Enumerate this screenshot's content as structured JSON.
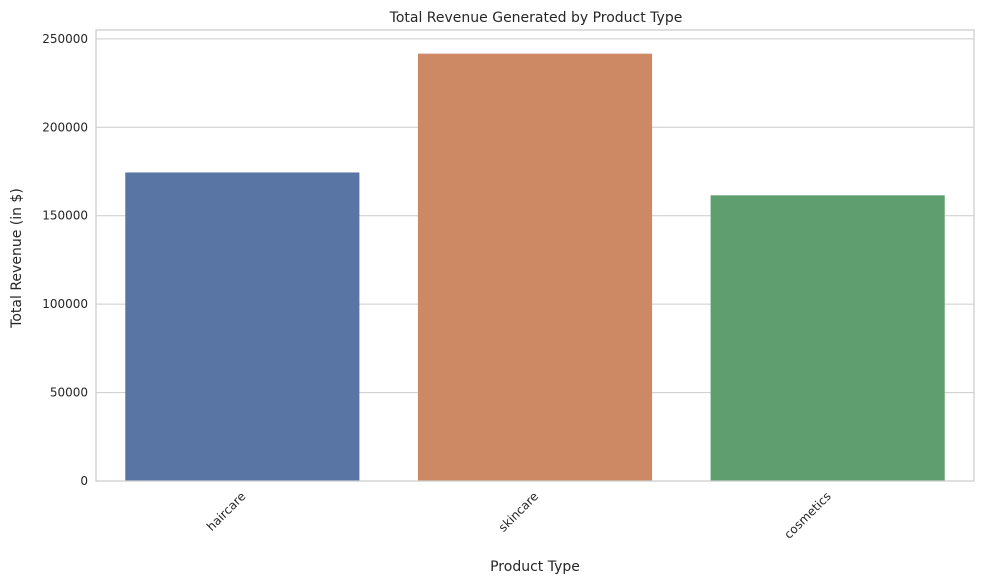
{
  "chart_data": {
    "type": "bar",
    "title": "Total Revenue Generated by Product Type",
    "xlabel": "Product Type",
    "ylabel": "Total Revenue (in $)",
    "categories": [
      "haircare",
      "skincare",
      "cosmetics"
    ],
    "values": [
      174455,
      241628,
      161521
    ],
    "colors": [
      "#5875a4",
      "#cc8963",
      "#5f9e6e"
    ],
    "ylim": [
      0,
      255000
    ],
    "yticks": [
      0,
      50000,
      100000,
      150000,
      200000,
      250000
    ],
    "grid": "horizontal",
    "background": "#ffffff",
    "legend": "none"
  }
}
